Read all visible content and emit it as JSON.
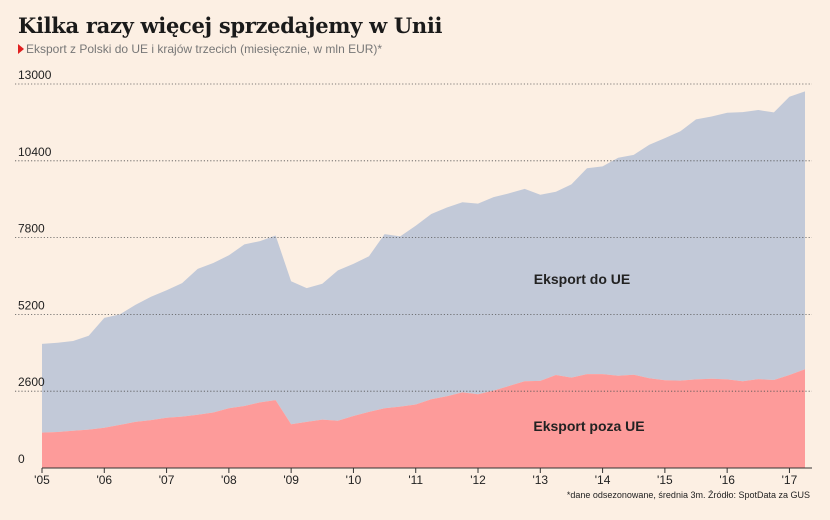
{
  "title": "Kilka razy więcej sprzedajemy w Unii",
  "subtitle": "Eksport z Polski do UE i krajów trzecich (miesięcznie, w mln EUR)*",
  "footnote": "*dane odsezonowane, średnia 3m. Źródło: SpotData za GUS",
  "colors": {
    "background": "#fcefe3",
    "eu_area": "#c2c9d8",
    "non_eu_area": "#fd9b9a",
    "marker": "#e02020"
  },
  "chart_data": {
    "type": "area",
    "stacked": true,
    "yticks": [
      0,
      2600,
      5200,
      7800,
      10400,
      13000
    ],
    "ylim": [
      0,
      13000
    ],
    "xticks": [
      "'05",
      "'06",
      "'07",
      "'08",
      "'09",
      "'10",
      "'11",
      "'12",
      "'13",
      "'14",
      "'15",
      "'16",
      "'17"
    ],
    "xlim": [
      2005.0,
      2017.33
    ],
    "grid": "horizontal dotted",
    "area_labels": [
      "Eksport do UE",
      "Eksport poza UE"
    ],
    "x": [
      2005.0,
      2005.25,
      2005.5,
      2005.75,
      2006.0,
      2006.25,
      2006.5,
      2006.75,
      2007.0,
      2007.25,
      2007.5,
      2007.75,
      2008.0,
      2008.25,
      2008.5,
      2008.75,
      2009.0,
      2009.25,
      2009.5,
      2009.75,
      2010.0,
      2010.25,
      2010.5,
      2010.75,
      2011.0,
      2011.25,
      2011.5,
      2011.75,
      2012.0,
      2012.25,
      2012.5,
      2012.75,
      2013.0,
      2013.25,
      2013.5,
      2013.75,
      2014.0,
      2014.25,
      2014.5,
      2014.75,
      2015.0,
      2015.25,
      2015.5,
      2015.75,
      2016.0,
      2016.25,
      2016.5,
      2016.75,
      2017.0,
      2017.25
    ],
    "series": [
      {
        "name": "Eksport poza UE",
        "values": [
          1200,
          1220,
          1260,
          1300,
          1360,
          1460,
          1560,
          1620,
          1700,
          1740,
          1800,
          1880,
          2020,
          2100,
          2220,
          2300,
          1480,
          1560,
          1640,
          1600,
          1760,
          1900,
          2020,
          2080,
          2150,
          2330,
          2430,
          2560,
          2500,
          2620,
          2780,
          2940,
          2950,
          3150,
          3060,
          3180,
          3180,
          3120,
          3160,
          3040,
          2970,
          2960,
          3000,
          3020,
          3000,
          2940,
          3010,
          2980,
          3150,
          3340
        ]
      },
      {
        "name": "Eksport do UE",
        "values": [
          3000,
          3020,
          3040,
          3180,
          3720,
          3740,
          3960,
          4180,
          4320,
          4520,
          4940,
          5060,
          5180,
          5470,
          5460,
          5570,
          4840,
          4530,
          4600,
          5090,
          5150,
          5270,
          5900,
          5760,
          6050,
          6270,
          6390,
          6440,
          6450,
          6550,
          6520,
          6510,
          6300,
          6200,
          6540,
          6970,
          7030,
          7380,
          7440,
          7900,
          8200,
          8440,
          8800,
          8880,
          9030,
          9110,
          9110,
          9060,
          9420,
          9410
        ]
      }
    ]
  }
}
